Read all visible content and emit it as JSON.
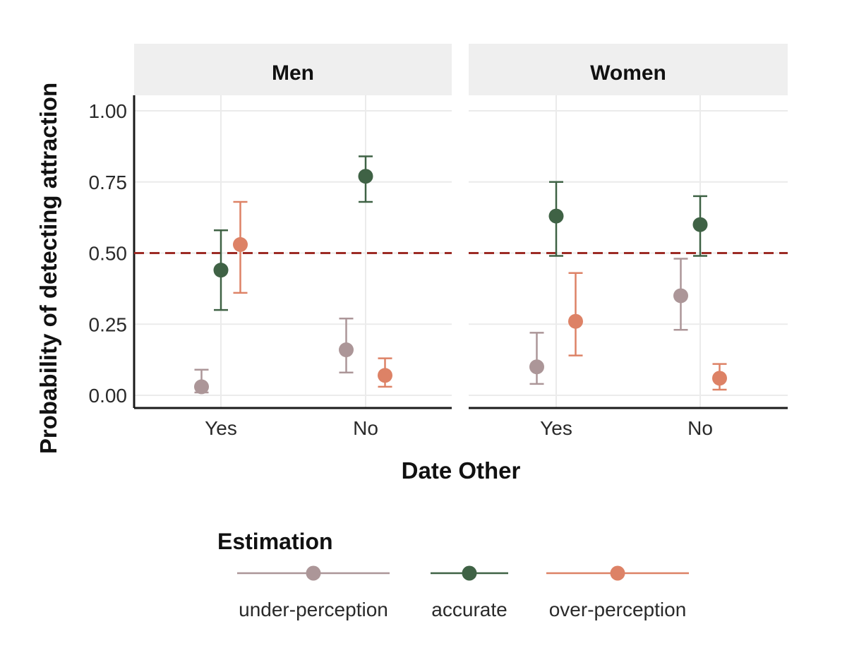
{
  "chart_data": {
    "type": "scatter",
    "xlabel": "Date Other",
    "ylabel": "Probability of detecting attraction",
    "ylim": [
      0,
      1
    ],
    "yticks": [
      "0.00",
      "0.25",
      "0.50",
      "0.75",
      "1.00"
    ],
    "y_tick_values": [
      0,
      0.25,
      0.5,
      0.75,
      1
    ],
    "categories": [
      "Yes",
      "No"
    ],
    "reference_line": 0.5,
    "reference_line_color": "#9c2b25",
    "grid": true,
    "legend_position": "bottom",
    "legend_title": "Estimation",
    "series_meta": [
      {
        "name": "under-perception",
        "color": "#ac9698",
        "offset": -0.25
      },
      {
        "name": "accurate",
        "color": "#3f6245",
        "offset": 0.0
      },
      {
        "name": "over-perception",
        "color": "#dd8266",
        "offset": 0.25
      }
    ],
    "facets": [
      {
        "label": "Men",
        "series": [
          {
            "name": "under-perception",
            "values": [
              0.03,
              0.16
            ],
            "lower": [
              0.01,
              0.08
            ],
            "upper": [
              0.09,
              0.27
            ]
          },
          {
            "name": "accurate",
            "values": [
              0.44,
              0.77
            ],
            "lower": [
              0.3,
              0.68
            ],
            "upper": [
              0.58,
              0.84
            ]
          },
          {
            "name": "over-perception",
            "values": [
              0.53,
              0.07
            ],
            "lower": [
              0.36,
              0.03
            ],
            "upper": [
              0.68,
              0.13
            ]
          }
        ]
      },
      {
        "label": "Women",
        "series": [
          {
            "name": "under-perception",
            "values": [
              0.1,
              0.35
            ],
            "lower": [
              0.04,
              0.23
            ],
            "upper": [
              0.22,
              0.48
            ]
          },
          {
            "name": "accurate",
            "values": [
              0.63,
              0.6
            ],
            "lower": [
              0.49,
              0.49
            ],
            "upper": [
              0.75,
              0.7
            ]
          },
          {
            "name": "over-perception",
            "values": [
              0.26,
              0.06
            ],
            "lower": [
              0.14,
              0.02
            ],
            "upper": [
              0.43,
              0.11
            ]
          }
        ]
      }
    ]
  }
}
